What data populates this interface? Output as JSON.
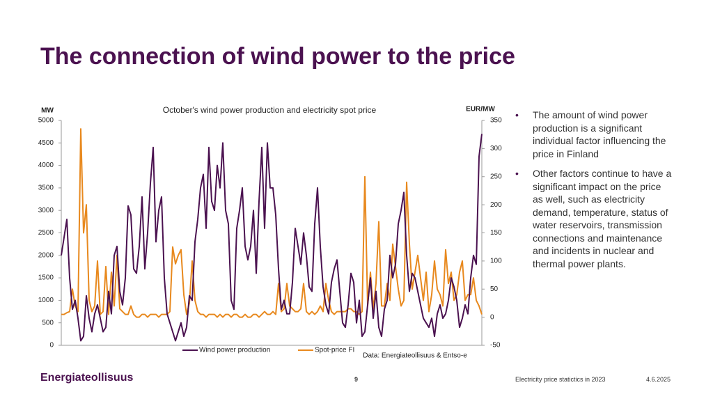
{
  "title": "The connection of wind power to the price",
  "bullets": [
    "The amount of wind power production is a significant individual factor influencing the price in Finland",
    "Other factors continue to have a significant impact on the price as well, such as electricity demand, temperature, status of water reservoirs, transmission connections and maintenance and incidents in nuclear and thermal power plants."
  ],
  "footer": {
    "logo": "Energiateollisuus",
    "page": "9",
    "text": "Electricity price statictics in 2023",
    "date": "4.6.2025"
  },
  "chart_data": {
    "type": "line",
    "title": "October's wind power production and electricity spot price",
    "y_label": "MW",
    "y2_label": "EUR/MW",
    "source": "Data: Energiateollisuus & Entso-e",
    "ylim": [
      0,
      5000
    ],
    "yticks": [
      0,
      500,
      1000,
      1500,
      2000,
      2500,
      3000,
      3500,
      4000,
      4500,
      5000
    ],
    "y2lim": [
      -50,
      350
    ],
    "y2ticks": [
      -50,
      0,
      50,
      100,
      150,
      200,
      250,
      300,
      350
    ],
    "series": [
      {
        "name": "Wind power production",
        "color": "#4b1250",
        "values": [
          2000,
          2400,
          2800,
          1500,
          800,
          1000,
          600,
          100,
          200,
          1100,
          600,
          300,
          700,
          900,
          600,
          300,
          400,
          1200,
          700,
          2000,
          2200,
          1200,
          900,
          1500,
          3100,
          2900,
          1700,
          1600,
          2200,
          3300,
          1700,
          2500,
          3600,
          4400,
          2300,
          3000,
          3300,
          1500,
          700,
          500,
          300,
          100,
          300,
          500,
          200,
          400,
          1100,
          1000,
          2300,
          2800,
          3500,
          3800,
          2600,
          4400,
          3200,
          3000,
          4000,
          3500,
          4500,
          3000,
          2700,
          1000,
          800,
          2600,
          3000,
          3500,
          2200,
          1900,
          2200,
          3000,
          1600,
          3200,
          4400,
          2600,
          4500,
          3500,
          3500,
          2900,
          1700,
          800,
          1000,
          700,
          700,
          1400,
          2600,
          2200,
          1800,
          2500,
          2000,
          1300,
          1200,
          2700,
          3500,
          2200,
          1300,
          900,
          700,
          1400,
          1700,
          1900,
          1200,
          500,
          400,
          900,
          1600,
          1400,
          500,
          1000,
          200,
          300,
          900,
          1500,
          600,
          1200,
          400,
          200,
          800,
          1000,
          2000,
          1500,
          1800,
          2700,
          3000,
          3400,
          2000,
          1200,
          1600,
          1500,
          1200,
          900,
          600,
          500,
          400,
          600,
          200,
          700,
          900,
          600,
          700,
          1000,
          1500,
          1300,
          1000,
          400,
          600,
          900,
          700,
          1500,
          2000,
          1800,
          4200,
          4700
        ]
      },
      {
        "name": "Spot-price FI",
        "color": "#e8891e",
        "axis": "y2",
        "values": [
          5,
          5,
          8,
          10,
          50,
          20,
          10,
          335,
          150,
          200,
          30,
          10,
          20,
          100,
          5,
          10,
          90,
          5,
          80,
          20,
          110,
          15,
          10,
          5,
          5,
          20,
          5,
          0,
          0,
          5,
          5,
          0,
          5,
          5,
          5,
          0,
          5,
          5,
          5,
          10,
          125,
          95,
          110,
          120,
          40,
          5,
          25,
          100,
          30,
          10,
          5,
          5,
          0,
          5,
          5,
          5,
          0,
          5,
          0,
          5,
          5,
          0,
          5,
          5,
          0,
          0,
          5,
          0,
          0,
          5,
          5,
          0,
          5,
          10,
          5,
          5,
          10,
          5,
          60,
          10,
          15,
          60,
          20,
          15,
          10,
          10,
          15,
          60,
          10,
          5,
          10,
          5,
          10,
          20,
          10,
          60,
          30,
          10,
          5,
          10,
          10,
          10,
          10,
          15,
          15,
          10,
          10,
          5,
          10,
          250,
          20,
          80,
          15,
          60,
          170,
          20,
          20,
          60,
          30,
          130,
          90,
          50,
          20,
          30,
          240,
          130,
          50,
          80,
          110,
          70,
          30,
          80,
          10,
          40,
          100,
          50,
          40,
          20,
          120,
          60,
          80,
          30,
          40,
          80,
          100,
          30,
          40,
          40,
          70,
          30,
          20,
          5
        ]
      }
    ]
  }
}
